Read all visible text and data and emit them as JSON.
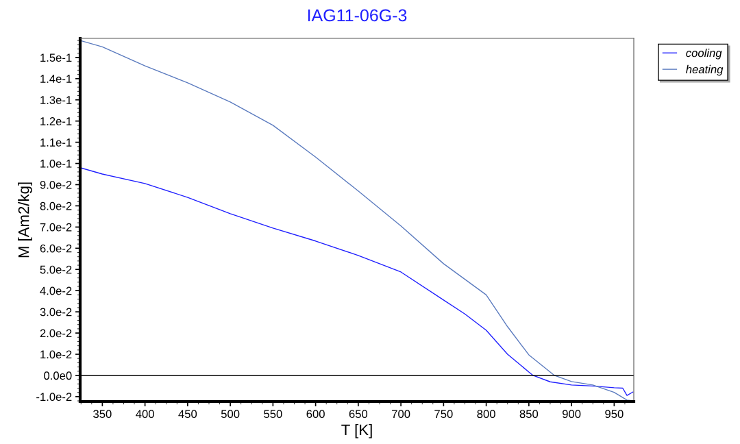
{
  "chart_data": {
    "type": "line",
    "title": "IAG11-06G-3",
    "xlabel": "T [K]",
    "ylabel": "M [Am2/kg]",
    "xlim": [
      324,
      973
    ],
    "ylim": [
      -0.0123,
      0.159
    ],
    "xticks": [
      350,
      400,
      450,
      500,
      550,
      600,
      650,
      700,
      750,
      800,
      850,
      900,
      950
    ],
    "yticks": [
      {
        "value": -0.01,
        "label": "-1.0e-2"
      },
      {
        "value": 0,
        "label": "0.0e0"
      },
      {
        "value": 0.01,
        "label": "1.0e-2"
      },
      {
        "value": 0.02,
        "label": "2.0e-2"
      },
      {
        "value": 0.03,
        "label": "3.0e-2"
      },
      {
        "value": 0.04,
        "label": "4.0e-2"
      },
      {
        "value": 0.05,
        "label": "5.0e-2"
      },
      {
        "value": 0.06,
        "label": "6.0e-2"
      },
      {
        "value": 0.07,
        "label": "7.0e-2"
      },
      {
        "value": 0.08,
        "label": "8.0e-2"
      },
      {
        "value": 0.09,
        "label": "9.0e-2"
      },
      {
        "value": 0.1,
        "label": "1.0e-1"
      },
      {
        "value": 0.11,
        "label": "1.1e-1"
      },
      {
        "value": 0.12,
        "label": "1.2e-1"
      },
      {
        "value": 0.13,
        "label": "1.3e-1"
      },
      {
        "value": 0.14,
        "label": "1.4e-1"
      },
      {
        "value": 0.15,
        "label": "1.5e-1"
      }
    ],
    "grid": false,
    "legend": "top right",
    "marker": "none",
    "line_style": "solid",
    "ref_lines": [
      {
        "axis": "y",
        "value": 0,
        "color": "#000000"
      }
    ],
    "series": [
      {
        "name": "cooling",
        "color": "#1f1fff",
        "x": [
          324,
          350,
          400,
          450,
          500,
          550,
          600,
          650,
          700,
          750,
          775,
          800,
          825,
          850,
          855,
          875,
          900,
          925,
          950,
          960,
          965,
          972
        ],
        "values": [
          0.098,
          0.095,
          0.0905,
          0.084,
          0.0763,
          0.0695,
          0.0634,
          0.0566,
          0.0488,
          0.0356,
          0.029,
          0.0213,
          0.01,
          0.0016,
          0,
          -0.003,
          -0.0045,
          -0.005,
          -0.0058,
          -0.006,
          -0.0094,
          -0.0078
        ]
      },
      {
        "name": "heating",
        "color": "#5b7bbf",
        "x": [
          324,
          350,
          400,
          450,
          500,
          550,
          600,
          650,
          700,
          750,
          800,
          825,
          850,
          875,
          880,
          900,
          925,
          950,
          965,
          973
        ],
        "values": [
          0.158,
          0.155,
          0.146,
          0.138,
          0.129,
          0.118,
          0.103,
          0.087,
          0.0705,
          0.0527,
          0.038,
          0.023,
          0.0097,
          0.0016,
          0,
          -0.0029,
          -0.0045,
          -0.008,
          -0.0116,
          -0.012
        ]
      }
    ]
  }
}
